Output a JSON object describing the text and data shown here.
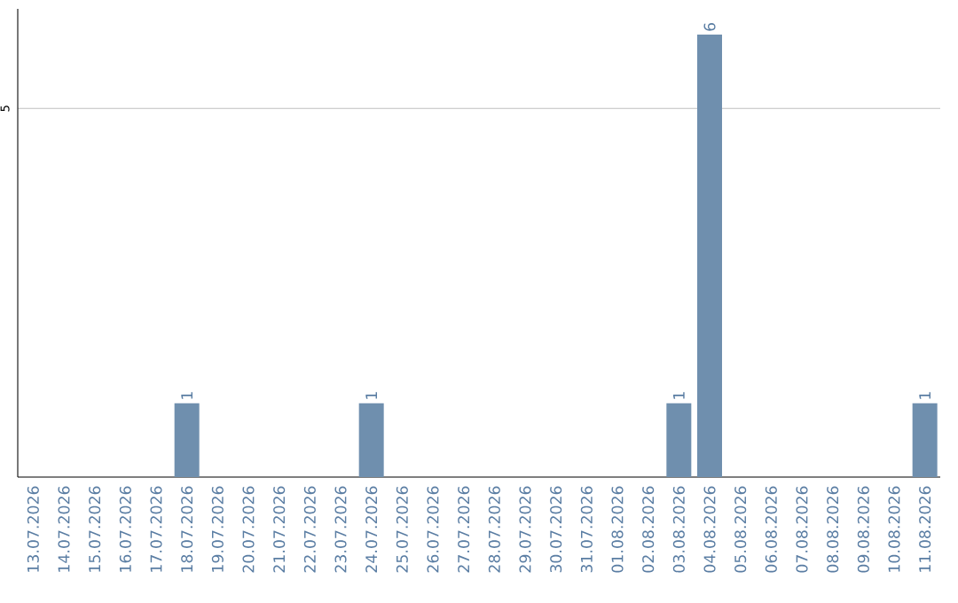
{
  "chart_data": {
    "type": "bar",
    "categories": [
      "13.07.2026",
      "14.07.2026",
      "15.07.2026",
      "16.07.2026",
      "17.07.2026",
      "18.07.2026",
      "19.07.2026",
      "20.07.2026",
      "21.07.2026",
      "22.07.2026",
      "23.07.2026",
      "24.07.2026",
      "25.07.2026",
      "26.07.2026",
      "27.07.2026",
      "28.07.2026",
      "29.07.2026",
      "30.07.2026",
      "31.07.2026",
      "01.08.2026",
      "02.08.2026",
      "03.08.2026",
      "04.08.2026",
      "05.08.2026",
      "06.08.2026",
      "07.08.2026",
      "08.08.2026",
      "09.08.2026",
      "10.08.2026",
      "11.08.2026"
    ],
    "values": [
      0,
      0,
      0,
      0,
      0,
      1,
      0,
      0,
      0,
      0,
      0,
      1,
      0,
      0,
      0,
      0,
      0,
      0,
      0,
      0,
      0,
      1,
      6,
      0,
      0,
      0,
      0,
      0,
      0,
      1
    ],
    "value_labels": [
      null,
      null,
      null,
      null,
      null,
      "1",
      null,
      null,
      null,
      null,
      null,
      "1",
      null,
      null,
      null,
      null,
      null,
      null,
      null,
      null,
      null,
      "1",
      "6",
      null,
      null,
      null,
      null,
      null,
      null,
      "1"
    ],
    "color": "#6f8fae",
    "ylim": [
      0,
      6.35
    ],
    "yticks": [
      5
    ],
    "grid": "y"
  }
}
